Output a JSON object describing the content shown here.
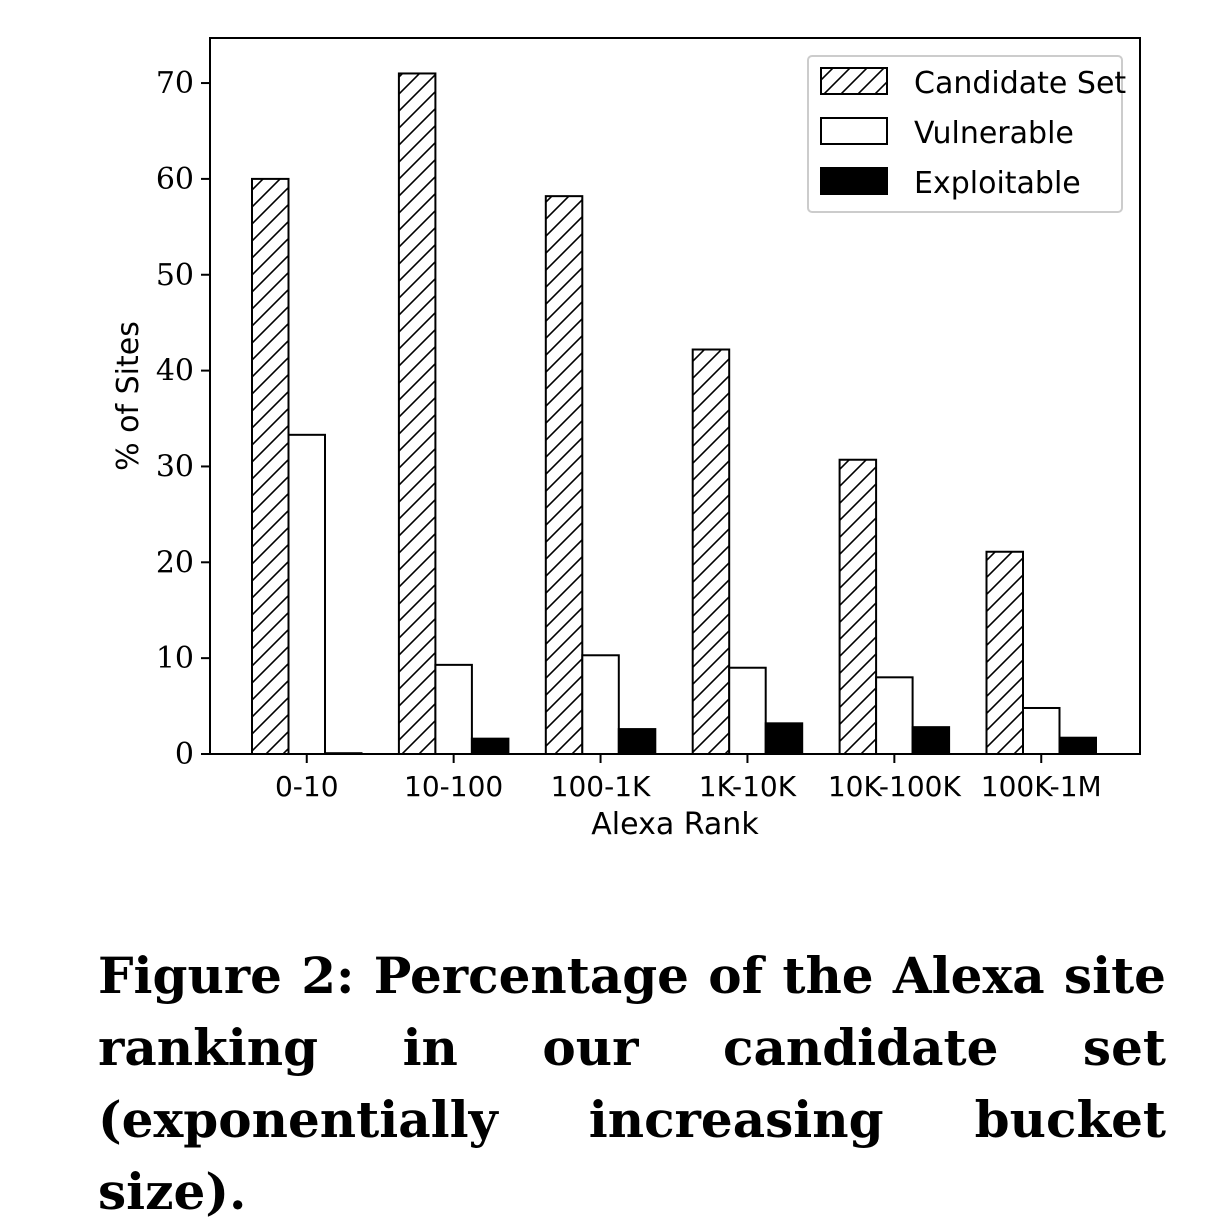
{
  "chart_data": {
    "type": "bar",
    "xlabel": "Alexa Rank",
    "ylabel": "% of Sites",
    "ylim": [
      0,
      75
    ],
    "yticks": [
      0,
      10,
      20,
      30,
      40,
      50,
      60,
      70
    ],
    "categories": [
      "0-10",
      "10-100",
      "100-1K",
      "1K-10K",
      "10K-100K",
      "100K-1M"
    ],
    "series": [
      {
        "name": "Candidate Set",
        "values": [
          60.0,
          71.0,
          58.2,
          42.2,
          30.7,
          21.1
        ],
        "fill": "hatch"
      },
      {
        "name": "Vulnerable",
        "values": [
          33.3,
          9.3,
          10.3,
          9.0,
          8.0,
          4.8
        ],
        "fill": "#ffffff"
      },
      {
        "name": "Exploitable",
        "values": [
          0.0,
          1.6,
          2.6,
          3.2,
          2.8,
          1.7
        ],
        "fill": "#000000"
      }
    ],
    "legend_position": "top-right",
    "grid": false
  },
  "caption": "Figure 2: Percentage of the Alexa site ranking in our candidate set (exponentially increasing bucket size)."
}
